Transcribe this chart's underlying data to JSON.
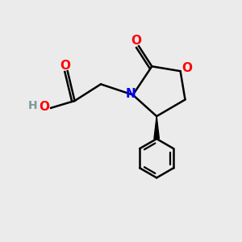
{
  "background_color": "#ebebeb",
  "bond_color": "#000000",
  "n_color": "#0000ff",
  "o_color": "#ff0000",
  "h_color": "#7a9a9a",
  "figsize": [
    3.0,
    3.0
  ],
  "dpi": 100,
  "lw": 1.8,
  "inner_lw": 1.7,
  "ring_O_label": "O",
  "ring_N_label": "N",
  "carbonyl_O_label": "O",
  "carboxyl_O_label": "O",
  "carboxyl_OH_label": "O",
  "H_label": "H"
}
